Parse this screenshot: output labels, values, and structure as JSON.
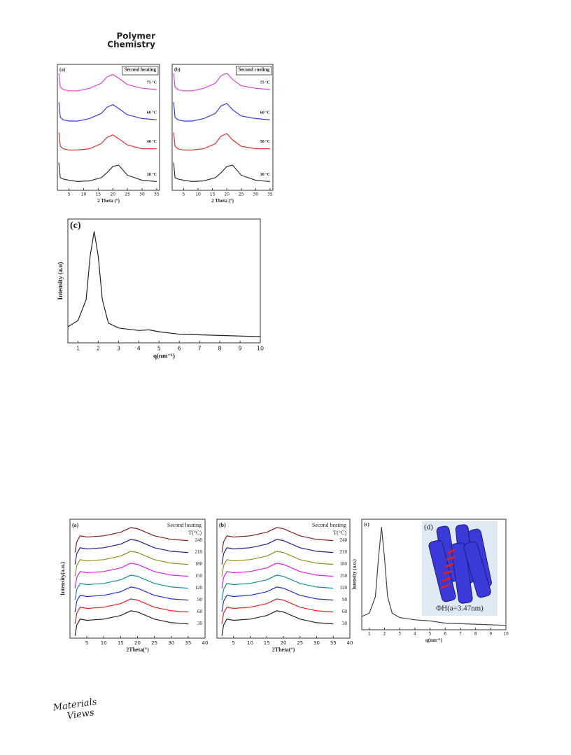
{
  "header": {
    "journal": [
      "Polymer",
      "Chemistry"
    ]
  },
  "footer": {
    "publisher": [
      "Materials",
      "Views"
    ]
  },
  "chart_data": [
    {
      "type": "line",
      "label": "(a)",
      "tag": "Second heating",
      "xlabel": "2 Theta (°)",
      "xlim": [
        1,
        36
      ],
      "xticks": [
        5,
        10,
        15,
        20,
        25,
        30,
        35
      ],
      "ylim": [
        0,
        10
      ],
      "x": [
        1.5,
        2,
        3,
        5,
        8,
        12,
        16,
        18,
        20,
        22,
        25,
        30,
        35
      ],
      "series": [
        {
          "name": "30 °C",
          "color": "#333333",
          "values": [
            2.2,
            1.0,
            0.9,
            0.8,
            0.7,
            0.75,
            1.0,
            1.4,
            1.9,
            2.0,
            1.2,
            0.8,
            0.7
          ]
        },
        {
          "name": "40 °C",
          "color": "#e03030",
          "values": [
            4.6,
            3.5,
            3.3,
            3.2,
            3.2,
            3.3,
            3.7,
            4.2,
            4.4,
            4.1,
            3.6,
            3.3,
            3.3
          ]
        },
        {
          "name": "60 °C",
          "color": "#3040e0",
          "values": [
            7.0,
            5.8,
            5.6,
            5.5,
            5.5,
            5.7,
            6.1,
            6.6,
            6.8,
            6.5,
            6.0,
            5.7,
            5.6
          ]
        },
        {
          "name": "75 °C",
          "color": "#e040e0",
          "values": [
            9.3,
            8.2,
            8.0,
            7.9,
            7.9,
            8.1,
            8.5,
            9.0,
            9.2,
            8.9,
            8.4,
            8.1,
            8.0
          ]
        }
      ]
    },
    {
      "type": "line",
      "label": "(b)",
      "tag": "Second cooling",
      "xlabel": "2 Theta (°)",
      "xlim": [
        1,
        36
      ],
      "xticks": [
        5,
        10,
        15,
        20,
        25,
        30,
        35
      ],
      "ylim": [
        0,
        10
      ],
      "x": [
        1.5,
        2,
        3,
        5,
        8,
        12,
        16,
        18,
        20,
        22,
        25,
        30,
        35
      ],
      "series": [
        {
          "name": "30 °C",
          "color": "#333333",
          "values": [
            2.2,
            1.0,
            0.9,
            0.8,
            0.7,
            0.75,
            1.0,
            1.4,
            1.9,
            2.0,
            1.2,
            0.8,
            0.7
          ]
        },
        {
          "name": "50 °C",
          "color": "#e03030",
          "values": [
            4.6,
            3.5,
            3.3,
            3.2,
            3.2,
            3.3,
            3.7,
            4.3,
            4.5,
            4.0,
            3.5,
            3.3,
            3.3
          ]
        },
        {
          "name": "60 °C",
          "color": "#3040e0",
          "values": [
            7.0,
            5.8,
            5.6,
            5.5,
            5.5,
            5.7,
            6.1,
            6.7,
            6.9,
            6.4,
            5.9,
            5.7,
            5.6
          ]
        },
        {
          "name": "75 °C",
          "color": "#e040e0",
          "values": [
            9.3,
            8.2,
            8.0,
            7.9,
            7.9,
            8.1,
            8.5,
            9.1,
            9.3,
            8.8,
            8.3,
            8.1,
            8.0
          ]
        }
      ]
    },
    {
      "type": "line",
      "label": "(c)",
      "xlabel": "q(nm⁻¹)",
      "ylabel": "Intensity (a.u)",
      "xlim": [
        0.5,
        10
      ],
      "xticks": [
        1,
        2,
        3,
        4,
        5,
        6,
        7,
        8,
        9,
        10
      ],
      "ylim": [
        0,
        10
      ],
      "x": [
        0.5,
        1,
        1.4,
        1.6,
        1.8,
        2.0,
        2.2,
        2.5,
        3,
        4,
        4.5,
        5,
        6,
        8,
        10
      ],
      "series": [
        {
          "color": "#222222",
          "values": [
            1.3,
            1.8,
            3.5,
            7,
            9.0,
            7,
            3.5,
            1.6,
            1.2,
            1.0,
            1.05,
            0.9,
            0.7,
            0.6,
            0.5
          ]
        }
      ]
    },
    {
      "type": "line",
      "label": "(a)",
      "tag": "Second heating",
      "legend_title": "T(°C)",
      "xlabel": "2Theta(°)",
      "ylabel": "Intensity(a.u.)",
      "xlim": [
        0,
        40
      ],
      "xticks": [
        5,
        10,
        15,
        20,
        25,
        30,
        35,
        40
      ],
      "ylim": [
        0,
        10
      ],
      "x": [
        1.5,
        2,
        3,
        5,
        10,
        15,
        18,
        20,
        25,
        30,
        35
      ],
      "series": [
        {
          "name": "30",
          "color": "#222222",
          "values": [
            0.2,
            1.1,
            1.6,
            1.5,
            1.6,
            1.9,
            2.3,
            2.2,
            1.6,
            1.3,
            1.2
          ]
        },
        {
          "name": "60",
          "color": "#e02020",
          "values": [
            1.2,
            2.1,
            2.6,
            2.5,
            2.6,
            2.9,
            3.3,
            3.2,
            2.6,
            2.3,
            2.2
          ]
        },
        {
          "name": "90",
          "color": "#2030d0",
          "values": [
            2.2,
            3.1,
            3.6,
            3.5,
            3.6,
            3.9,
            4.3,
            4.2,
            3.6,
            3.3,
            3.2
          ]
        },
        {
          "name": "120",
          "color": "#109090",
          "values": [
            3.2,
            4.1,
            4.6,
            4.5,
            4.6,
            4.9,
            5.3,
            5.2,
            4.6,
            4.3,
            4.2
          ]
        },
        {
          "name": "150",
          "color": "#e020e0",
          "values": [
            4.2,
            5.1,
            5.6,
            5.5,
            5.6,
            5.9,
            6.3,
            6.2,
            5.6,
            5.3,
            5.2
          ]
        },
        {
          "name": "180",
          "color": "#909020",
          "values": [
            5.2,
            6.1,
            6.6,
            6.5,
            6.6,
            6.9,
            7.3,
            7.2,
            6.6,
            6.3,
            6.2
          ]
        },
        {
          "name": "210",
          "color": "#202090",
          "values": [
            6.2,
            7.1,
            7.6,
            7.5,
            7.6,
            7.9,
            8.3,
            8.2,
            7.6,
            7.3,
            7.2
          ]
        },
        {
          "name": "240",
          "color": "#802020",
          "values": [
            7.2,
            8.1,
            8.6,
            8.5,
            8.6,
            8.9,
            9.3,
            9.2,
            8.6,
            8.3,
            8.2
          ]
        }
      ]
    },
    {
      "type": "line",
      "label": "(b)",
      "tag": "Second heating",
      "legend_title": "T(°C)",
      "xlabel": "2Theta(°)",
      "xlim": [
        0,
        40
      ],
      "xticks": [
        5,
        10,
        15,
        20,
        25,
        30,
        35,
        40
      ],
      "ylim": [
        0,
        10
      ],
      "x": [
        1.5,
        2,
        3,
        5,
        10,
        15,
        18,
        20,
        25,
        30,
        35
      ],
      "series": [
        {
          "name": "30",
          "color": "#222222",
          "values": [
            0.2,
            1.1,
            1.6,
            1.5,
            1.6,
            1.9,
            2.3,
            2.2,
            1.6,
            1.3,
            1.2
          ]
        },
        {
          "name": "60",
          "color": "#e02020",
          "values": [
            1.2,
            2.1,
            2.6,
            2.5,
            2.6,
            2.9,
            3.3,
            3.2,
            2.6,
            2.3,
            2.2
          ]
        },
        {
          "name": "90",
          "color": "#2030d0",
          "values": [
            2.2,
            3.1,
            3.6,
            3.5,
            3.6,
            3.9,
            4.3,
            4.2,
            3.6,
            3.3,
            3.2
          ]
        },
        {
          "name": "120",
          "color": "#109090",
          "values": [
            3.2,
            4.1,
            4.6,
            4.5,
            4.6,
            4.9,
            5.3,
            5.2,
            4.6,
            4.3,
            4.2
          ]
        },
        {
          "name": "150",
          "color": "#e020e0",
          "values": [
            4.2,
            5.1,
            5.6,
            5.5,
            5.6,
            5.9,
            6.3,
            6.2,
            5.6,
            5.3,
            5.2
          ]
        },
        {
          "name": "180",
          "color": "#909020",
          "values": [
            5.2,
            6.1,
            6.6,
            6.5,
            6.6,
            6.9,
            7.3,
            7.2,
            6.6,
            6.3,
            6.2
          ]
        },
        {
          "name": "210",
          "color": "#202090",
          "values": [
            6.2,
            7.1,
            7.6,
            7.5,
            7.6,
            7.9,
            8.3,
            8.2,
            7.6,
            7.3,
            7.2
          ]
        },
        {
          "name": "240",
          "color": "#802020",
          "values": [
            7.2,
            8.1,
            8.6,
            8.5,
            8.6,
            8.9,
            9.3,
            9.2,
            8.6,
            8.3,
            8.2
          ]
        }
      ]
    },
    {
      "type": "line",
      "label": "(c)",
      "xlabel": "q(nm⁻¹)",
      "ylabel": "Intensity (a.u.)",
      "inset_label": "(d)",
      "inset_caption": "ΦH(a=3.47nm)",
      "xlim": [
        0.5,
        10
      ],
      "xticks": [
        1,
        2,
        3,
        4,
        5,
        6,
        7,
        8,
        9,
        10
      ],
      "ylim": [
        0,
        10
      ],
      "x": [
        0.5,
        1,
        1.4,
        1.6,
        1.8,
        2.0,
        2.2,
        2.5,
        3,
        4,
        5,
        6,
        8,
        10
      ],
      "series": [
        {
          "color": "#444444",
          "values": [
            1.2,
            1.5,
            3,
            6.5,
            9.3,
            6.5,
            3,
            1.5,
            1.1,
            0.9,
            0.8,
            0.6,
            0.5,
            0.4
          ]
        }
      ]
    }
  ]
}
